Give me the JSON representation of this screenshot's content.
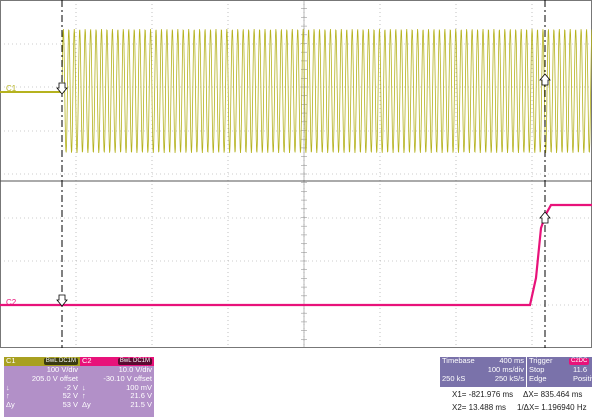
{
  "colors": {
    "ch1": "#b5b21e",
    "ch2": "#e8127a",
    "cursor": "#000000",
    "grid": "#9a9a9a",
    "panel_ch1_bg": "#b290c8",
    "panel_ch2_bg": "#b290c8",
    "panel_tb_bg": "#7a72aa",
    "panel_trig_bg": "#7a72aa"
  },
  "channel_markers": {
    "ch1": "C1",
    "ch2": "C2"
  },
  "channels": [
    {
      "label": "C1",
      "badge": "BwL DC1M",
      "vdiv": "100 V/div",
      "offset": "205.0 V offset",
      "r3": {
        "sym": "↓",
        "val": "-2 V"
      },
      "r4": {
        "sym": "↑",
        "val": "52 V"
      },
      "r5": {
        "sym": "Δy",
        "val": "53 V"
      }
    },
    {
      "label": "C2",
      "badge": "BwL DC1M",
      "vdiv": "10.0 V/div",
      "offset": "-30.10 V offset",
      "r3": {
        "sym": "↓",
        "val": "100 mV"
      },
      "r4": {
        "sym": "↑",
        "val": "21.6 V"
      },
      "r5": {
        "sym": "Δy",
        "val": "21.5 V"
      }
    }
  ],
  "timebase": {
    "label": "Timebase",
    "value": "400 ms",
    "rate": "100 ms/div",
    "samples": "250 kS",
    "srate": "250 kS/s"
  },
  "trigger": {
    "label": "Trigger",
    "badge": "C2DC",
    "mode": "Stop",
    "level": "11.6",
    "type": "Edge",
    "slope": "Positive"
  },
  "measurements": {
    "x1": "X1= -821.976 ms",
    "dx": "ΔX=  835.464 ms",
    "x2": "X2=   13.488 ms",
    "f": "1/ΔX= 1.196940 Hz"
  }
}
